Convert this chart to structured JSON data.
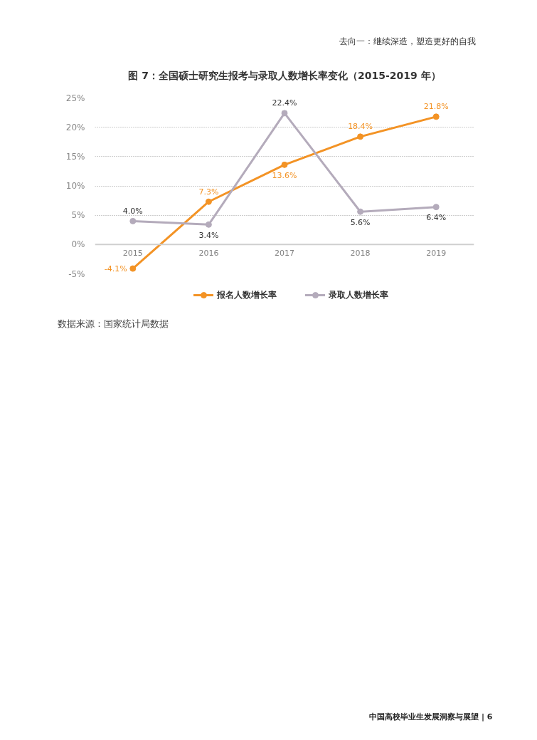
{
  "chart_data": {
    "type": "line",
    "title": "图 7：全国硕士研究生报考与录取人数增长率变化（2015-2019 年）",
    "categories": [
      "2015",
      "2016",
      "2017",
      "2018",
      "2019"
    ],
    "series": [
      {
        "name": "报名人数增长率",
        "color": "#f39325",
        "values": [
          -4.1,
          7.3,
          13.6,
          18.4,
          21.8
        ],
        "value_labels": [
          "-4.1%",
          "7.3%",
          "13.6%",
          "18.4%",
          "21.8%"
        ]
      },
      {
        "name": "录取人数增长率",
        "color": "#b4abbb",
        "values": [
          4.0,
          3.4,
          22.4,
          5.6,
          6.4
        ],
        "value_labels": [
          "4.0%",
          "3.4%",
          "22.4%",
          "5.6%",
          "6.4%"
        ]
      }
    ],
    "ylim": [
      -5,
      25
    ],
    "yticks": [
      {
        "value": -5,
        "label": "-5%"
      },
      {
        "value": 0,
        "label": "0%"
      },
      {
        "value": 5,
        "label": "5%"
      },
      {
        "value": 10,
        "label": "10%"
      },
      {
        "value": 15,
        "label": "15%"
      },
      {
        "value": 20,
        "label": "20%"
      },
      {
        "value": 25,
        "label": "25%"
      }
    ],
    "grid": "y",
    "legend": "bottom",
    "marker": "circle",
    "line_style": "solid",
    "annotations": [
      "去向一：继续深造，塑造更好的自我",
      "数据来源：国家统计局数据",
      "中国高校毕业生发展洞察与展望 | 6"
    ]
  }
}
